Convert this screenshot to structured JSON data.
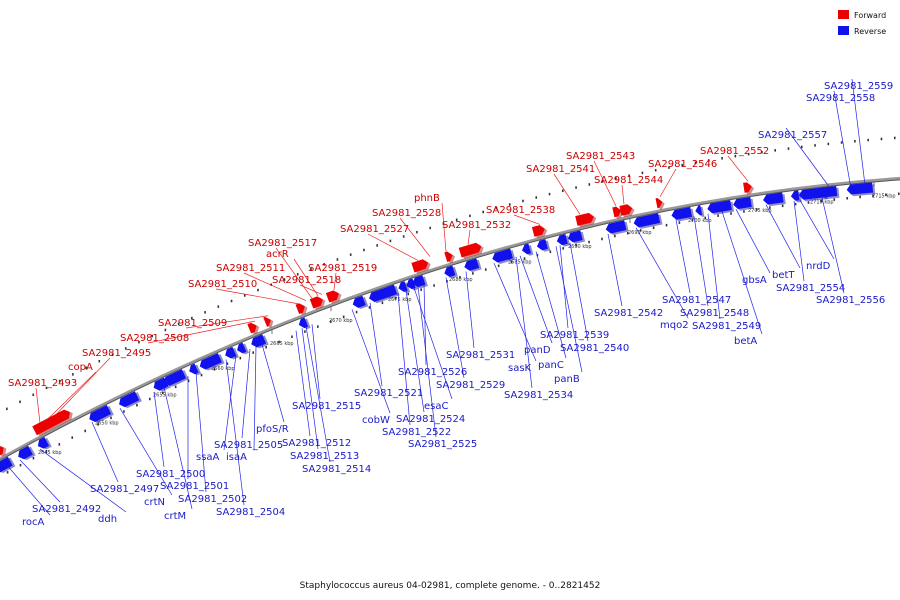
{
  "title": "Staphylococcus aureus 04-02981, complete genome. - 0..2821452",
  "legend": [
    {
      "label": "Forward",
      "color": "#ee0000"
    },
    {
      "label": "Reverse",
      "color": "#1111ee"
    }
  ],
  "colors": {
    "forward": "#ee0000",
    "reverse": "#1111ee",
    "backbone": "#777777",
    "leader": "#2222ee",
    "leader_fwd": "#ee2222"
  },
  "scale_ticks": [
    "2645 kbp",
    "2650 kbp",
    "2655 kbp",
    "2660 kbp",
    "2665 kbp",
    "2670 kbp",
    "2675 kbp",
    "2680 kbp",
    "2685 kbp",
    "2690 kbp",
    "2695 kbp",
    "2700 kbp",
    "2705 kbp",
    "2710 kbp",
    "2715 kbp"
  ],
  "forward_labels": [
    "SA2981_2493",
    "copA",
    "SA2981_2495",
    "SA2981_2508",
    "SA2981_2509",
    "SA2981_2510",
    "SA2981_2511",
    "acrR",
    "SA2981_2517",
    "SA2981_2518",
    "SA2981_2519",
    "SA2981_2527",
    "SA2981_2528",
    "phnB",
    "SA2981_2532",
    "SA2981_2538",
    "SA2981_2541",
    "SA2981_2543",
    "SA2981_2544",
    "SA2981_2546",
    "SA2981_2552"
  ],
  "reverse_labels": [
    "rocA",
    "SA2981_2492",
    "ddh",
    "SA2981_2497",
    "crtN",
    "SA2981_2500",
    "crtM",
    "SA2981_2501",
    "SA2981_2502",
    "SA2981_2504",
    "ssaA",
    "SA2981_2505",
    "isaA",
    "pfoS/R",
    "SA2981_2512",
    "SA2981_2513",
    "SA2981_2514",
    "SA2981_2515",
    "cobW",
    "SA2981_2521",
    "SA2981_2522",
    "SA2981_2524",
    "esaC",
    "SA2981_2525",
    "SA2981_2526",
    "SA2981_2529",
    "SA2981_2531",
    "sasK",
    "panD",
    "panC",
    "panB",
    "SA2981_2534",
    "SA2981_2539",
    "SA2981_2540",
    "SA2981_2542",
    "mqo2",
    "SA2981_2547",
    "SA2981_2548",
    "SA2981_2549",
    "betA",
    "gbsA",
    "betT",
    "SA2981_2554",
    "nrdD",
    "SA2981_2556",
    "SA2981_2557",
    "SA2981_2558",
    "SA2981_2559"
  ]
}
